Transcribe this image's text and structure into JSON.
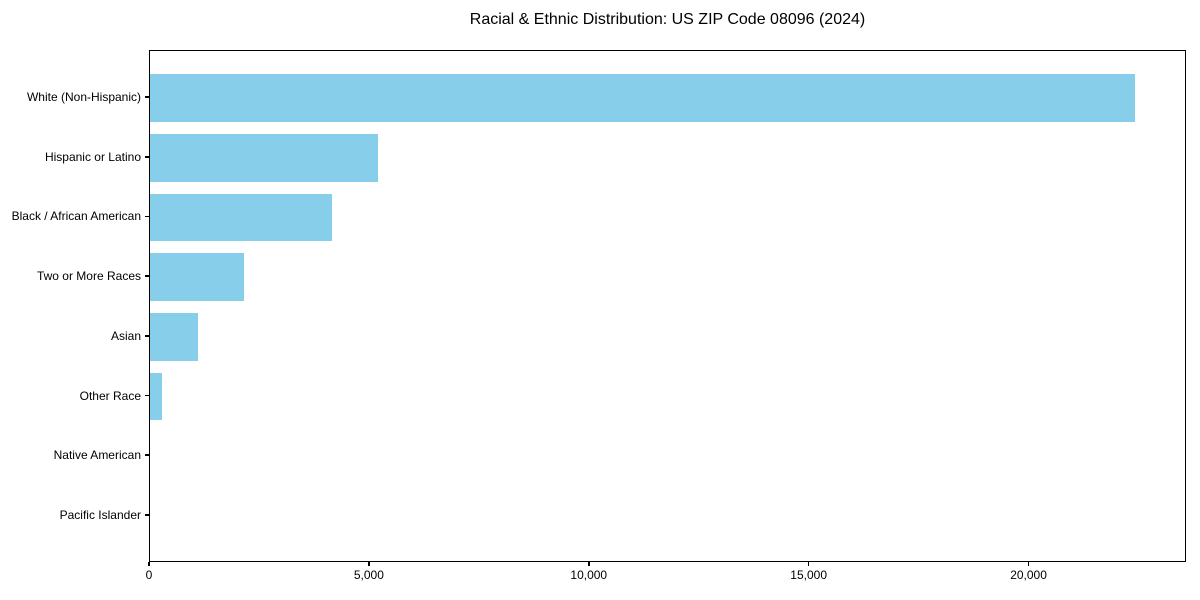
{
  "chart_data": {
    "type": "bar",
    "orientation": "horizontal",
    "title": "Racial & Ethnic Distribution: US ZIP Code 08096 (2024)",
    "categories": [
      "White (Non-Hispanic)",
      "Hispanic or Latino",
      "Black / African American",
      "Two or More Races",
      "Asian",
      "Other Race",
      "Native American",
      "Pacific Islander"
    ],
    "values": [
      22460,
      5190,
      4140,
      2140,
      1090,
      270,
      0,
      0
    ],
    "xlabel": "",
    "ylabel": "",
    "xlim": [
      0,
      23580
    ],
    "x_ticks": [
      0,
      5000,
      10000,
      15000,
      20000
    ],
    "x_tick_labels": [
      "0",
      "5,000",
      "10,000",
      "15,000",
      "20,000"
    ],
    "bar_color": "#87CEEB",
    "bar_height_fraction": 0.8,
    "axis_color": "#000000",
    "text_color": "#000000",
    "background_color": "#FFFFFF",
    "grid": false,
    "legend_position": "none"
  }
}
